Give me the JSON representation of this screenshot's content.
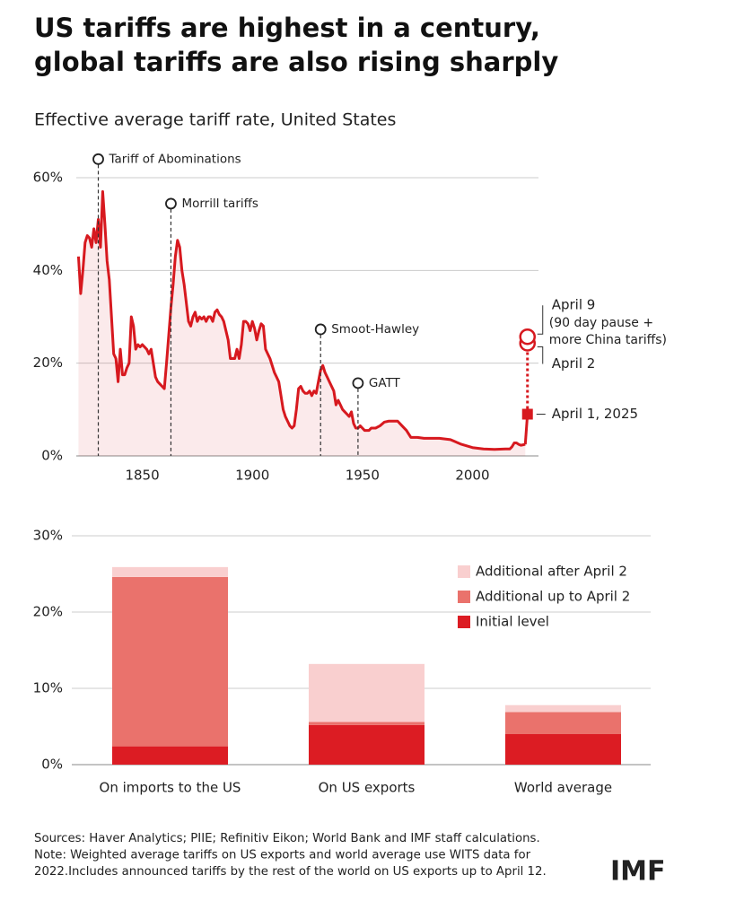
{
  "title": "US tariffs are highest in a century, global tariffs are also rising sharply",
  "chart_data": [
    {
      "type": "line",
      "subtitle": "Effective average tariff rate, United States",
      "xlim": [
        1820,
        2030
      ],
      "xticks": [
        1850,
        1900,
        1950,
        2000
      ],
      "ylim": [
        0,
        60
      ],
      "yticks": [
        {
          "value": 0,
          "label": "0%"
        },
        {
          "value": 20,
          "label": "20%"
        },
        {
          "value": 40,
          "label": "40%"
        },
        {
          "value": 60,
          "label": "60%"
        }
      ],
      "grid": true,
      "series": [
        {
          "color": "#d7191f",
          "x": [
            1821,
            1822,
            1823,
            1824,
            1825,
            1826,
            1827,
            1828,
            1829,
            1830,
            1831,
            1832,
            1833,
            1834,
            1835,
            1836,
            1837,
            1838,
            1839,
            1840,
            1841,
            1842,
            1843,
            1844,
            1845,
            1846,
            1847,
            1848,
            1849,
            1850,
            1851,
            1852,
            1853,
            1854,
            1855,
            1856,
            1857,
            1858,
            1859,
            1860,
            1861,
            1862,
            1863,
            1864,
            1865,
            1866,
            1867,
            1868,
            1869,
            1870,
            1871,
            1872,
            1873,
            1874,
            1875,
            1876,
            1877,
            1878,
            1879,
            1880,
            1881,
            1882,
            1883,
            1884,
            1885,
            1886,
            1887,
            1888,
            1889,
            1890,
            1891,
            1892,
            1893,
            1894,
            1895,
            1896,
            1897,
            1898,
            1899,
            1900,
            1901,
            1902,
            1903,
            1904,
            1905,
            1906,
            1907,
            1908,
            1909,
            1910,
            1911,
            1912,
            1913,
            1914,
            1915,
            1916,
            1917,
            1918,
            1919,
            1920,
            1921,
            1922,
            1923,
            1924,
            1925,
            1926,
            1927,
            1928,
            1929,
            1930,
            1931,
            1932,
            1933,
            1934,
            1935,
            1936,
            1937,
            1938,
            1939,
            1940,
            1941,
            1942,
            1943,
            1944,
            1945,
            1946,
            1947,
            1948,
            1949,
            1950,
            1951,
            1952,
            1953,
            1954,
            1956,
            1958,
            1960,
            1962,
            1964,
            1966,
            1968,
            1970,
            1972,
            1975,
            1978,
            1980,
            1985,
            1990,
            1995,
            2000,
            2005,
            2010,
            2015,
            2017,
            2018,
            2019,
            2020,
            2021,
            2022,
            2023,
            2024
          ],
          "values": [
            43,
            35,
            40,
            46,
            47.5,
            47,
            45,
            49,
            46,
            51,
            45,
            57,
            50,
            42,
            38,
            30,
            22,
            21,
            16,
            23,
            17.5,
            17.5,
            19,
            20,
            30,
            28,
            23,
            24,
            23.5,
            24,
            23.5,
            23,
            22,
            23,
            20,
            17,
            16,
            15.5,
            15,
            14.5,
            20,
            26,
            32,
            37,
            43,
            46.5,
            45,
            40,
            37,
            33,
            29,
            28,
            30,
            31,
            29,
            30,
            29.5,
            30,
            29,
            30,
            30,
            29,
            31,
            31.5,
            30.5,
            30,
            29,
            27,
            25,
            21,
            21,
            21,
            23,
            21,
            24,
            29,
            29,
            28.5,
            27,
            29,
            27.5,
            25,
            27,
            28.5,
            28,
            23,
            22,
            21,
            19.5,
            18,
            17,
            16,
            13,
            10,
            8.5,
            7.5,
            6.5,
            6,
            6.5,
            10,
            14.5,
            15,
            14,
            13.5,
            13.5,
            14,
            13,
            14,
            13.5,
            16,
            18.5,
            19.5,
            18,
            17,
            16,
            15,
            14,
            11,
            12,
            11,
            10,
            9.5,
            9,
            8.5,
            9.5,
            7,
            6,
            6,
            6.5,
            6,
            5.5,
            5.5,
            5.5,
            6,
            6,
            6.5,
            7.3,
            7.5,
            7.5,
            7.5,
            6.5,
            5.5,
            4,
            4,
            3.8,
            3.8,
            3.8,
            3.5,
            2.5,
            1.8,
            1.5,
            1.4,
            1.5,
            1.5,
            2,
            2.8,
            2.8,
            2.5,
            2.3,
            2.4,
            2.5
          ]
        }
      ],
      "events": [
        {
          "label": "Tariff of Abominations",
          "x": 1830,
          "y": 64
        },
        {
          "label": "Morrill tariffs",
          "x": 1863,
          "y": 54.4
        },
        {
          "label": "Smoot-Hawley",
          "x": 1931,
          "y": 27.3
        },
        {
          "label": "GATT",
          "x": 1948,
          "y": 15.7
        }
      ],
      "points": [
        {
          "label": "April 1, 2025",
          "x": 2025,
          "y": 9
        },
        {
          "label": "April 2",
          "x": 2025,
          "y": 24.3
        },
        {
          "label": "April 9",
          "x": 2025,
          "y": 25.7,
          "note": [
            "(90 day pause +",
            "more China tariffs)"
          ]
        }
      ]
    },
    {
      "type": "stacked_bar",
      "categories": [
        "On imports to the US",
        "On US exports",
        "World average"
      ],
      "ylim": [
        0,
        30
      ],
      "yticks": [
        {
          "value": 0,
          "label": "0%"
        },
        {
          "value": 10,
          "label": "10%"
        },
        {
          "value": 20,
          "label": "20%"
        },
        {
          "value": 30,
          "label": "30%"
        }
      ],
      "grid": true,
      "legend": "top-right",
      "series": [
        {
          "name": "Initial level",
          "color": "#dc1c23",
          "values": [
            2.4,
            5.2,
            4.0
          ]
        },
        {
          "name": "Additional up to April 2",
          "color": "#ea726c",
          "values": [
            22.2,
            0.4,
            2.9
          ]
        },
        {
          "name": "Additional after April 2",
          "color": "#f9cfcf",
          "values": [
            1.3,
            7.6,
            0.9
          ]
        }
      ]
    }
  ],
  "footer": {
    "notes": [
      "Sources: Haver Analytics; PIIE; Refinitiv Eikon; World Bank and IMF staff calculations.",
      "Note: Weighted average tariffs on US exports and world average use WITS data for",
      "2022.Includes announced tariffs by the rest of the world on US exports up to April 12."
    ],
    "logo": "IMF"
  }
}
